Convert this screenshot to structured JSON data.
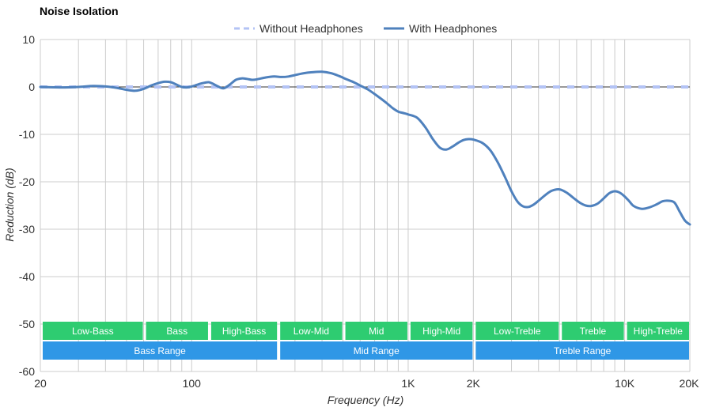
{
  "chart_data": {
    "type": "line",
    "title": "Noise Isolation",
    "xlabel": "Frequency (Hz)",
    "ylabel": "Reduction (dB)",
    "xscale": "log",
    "xlim": [
      20,
      20000
    ],
    "ylim": [
      -60,
      10
    ],
    "grid": true,
    "legend_position": "top-center",
    "x_ticks": [
      {
        "value": 20,
        "label": "20"
      },
      {
        "value": 100,
        "label": "100"
      },
      {
        "value": 1000,
        "label": "1K"
      },
      {
        "value": 2000,
        "label": "2K"
      },
      {
        "value": 10000,
        "label": "10K"
      },
      {
        "value": 20000,
        "label": "20K"
      }
    ],
    "y_ticks": [
      10,
      0,
      -10,
      -20,
      -30,
      -40,
      -50,
      -60
    ],
    "series": [
      {
        "name": "Without Headphones",
        "style": "dashed",
        "color": "#b3c3f5",
        "x": [
          20,
          20000
        ],
        "y": [
          0,
          0
        ]
      },
      {
        "name": "With Headphones",
        "style": "solid",
        "color": "#4f81bd",
        "x": [
          20,
          25,
          30,
          35,
          40,
          45,
          50,
          55,
          60,
          65,
          70,
          75,
          80,
          85,
          90,
          95,
          100,
          105,
          110,
          115,
          120,
          125,
          130,
          140,
          150,
          160,
          170,
          180,
          190,
          200,
          220,
          240,
          260,
          280,
          300,
          330,
          360,
          400,
          440,
          480,
          520,
          560,
          600,
          650,
          700,
          750,
          800,
          850,
          900,
          950,
          1000,
          1100,
          1200,
          1300,
          1400,
          1500,
          1600,
          1700,
          1800,
          1900,
          2000,
          2200,
          2400,
          2600,
          2800,
          3000,
          3200,
          3400,
          3600,
          3800,
          4000,
          4300,
          4600,
          5000,
          5400,
          5800,
          6200,
          6600,
          7000,
          7500,
          8000,
          8500,
          9000,
          9500,
          10000,
          10500,
          11000,
          12000,
          13000,
          14000,
          15000,
          16000,
          17000,
          18000,
          19000,
          20000
        ],
        "y": [
          0,
          -0.1,
          0,
          0.2,
          0.1,
          -0.2,
          -0.6,
          -0.8,
          -0.4,
          0.3,
          0.8,
          1.1,
          1.0,
          0.5,
          0.0,
          -0.1,
          0.1,
          0.4,
          0.7,
          0.9,
          1.0,
          0.7,
          0.3,
          -0.3,
          0.5,
          1.5,
          1.8,
          1.7,
          1.5,
          1.6,
          2.0,
          2.2,
          2.1,
          2.2,
          2.5,
          2.9,
          3.1,
          3.2,
          2.9,
          2.3,
          1.6,
          1.0,
          0.3,
          -0.5,
          -1.5,
          -2.5,
          -3.5,
          -4.5,
          -5.2,
          -5.5,
          -5.8,
          -6.5,
          -8.5,
          -11.0,
          -12.8,
          -13.2,
          -12.6,
          -11.8,
          -11.2,
          -11.0,
          -11.1,
          -11.8,
          -13.4,
          -16.0,
          -19.0,
          -22.0,
          -24.2,
          -25.2,
          -25.3,
          -24.8,
          -24.0,
          -22.8,
          -21.9,
          -21.6,
          -22.3,
          -23.4,
          -24.4,
          -25.0,
          -25.1,
          -24.6,
          -23.5,
          -22.4,
          -22.0,
          -22.3,
          -23.1,
          -24.1,
          -25.1,
          -25.7,
          -25.4,
          -24.8,
          -24.1,
          -24.0,
          -24.4,
          -26.4,
          -28.2,
          -29.0
        ]
      }
    ],
    "band_rows": [
      [
        {
          "label": "Low-Bass",
          "from": 20,
          "to": 60
        },
        {
          "label": "Bass",
          "from": 60,
          "to": 120
        },
        {
          "label": "High-Bass",
          "from": 120,
          "to": 250
        },
        {
          "label": "Low-Mid",
          "from": 250,
          "to": 500
        },
        {
          "label": "Mid",
          "from": 500,
          "to": 1000
        },
        {
          "label": "High-Mid",
          "from": 1000,
          "to": 2000
        },
        {
          "label": "Low-Treble",
          "from": 2000,
          "to": 5000
        },
        {
          "label": "Treble",
          "from": 5000,
          "to": 10000
        },
        {
          "label": "High-Treble",
          "from": 10000,
          "to": 20000
        }
      ],
      [
        {
          "label": "Bass Range",
          "from": 20,
          "to": 250
        },
        {
          "label": "Mid Range",
          "from": 250,
          "to": 2000
        },
        {
          "label": "Treble Range",
          "from": 2000,
          "to": 20000
        }
      ]
    ],
    "band_colors": [
      "#2ecc71",
      "#2f97e6"
    ]
  }
}
